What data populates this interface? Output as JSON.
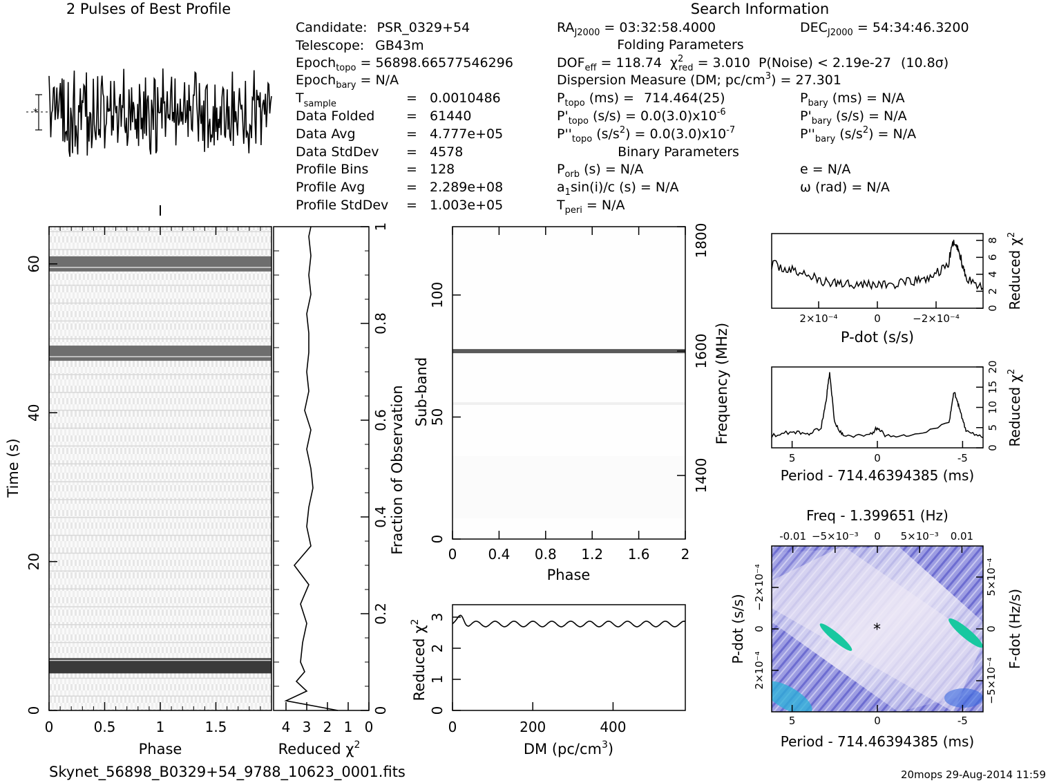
{
  "header": {
    "profile_title": "2 Pulses of Best Profile",
    "search_title": "Search Information",
    "folding_title": "Folding Parameters",
    "binary_title": "Binary Parameters",
    "filename": "Skynet_56898_B0329+54_9788_10623_0001.fits",
    "footer_stamp": "20mops 29-Aug-2014 11:59"
  },
  "info": {
    "candidate_label": "Candidate:",
    "candidate": "PSR_0329+54",
    "telescope_label": "Telescope:",
    "telescope": "GB43m",
    "epoch_topo": "56898.66577546296",
    "epoch_bary": "N/A",
    "t_sample": "0.0010486",
    "data_folded_label": "Data Folded",
    "data_folded": "61440",
    "data_avg_label": "Data Avg",
    "data_avg": "4.777e+05",
    "data_stddev_label": "Data StdDev",
    "data_stddev": "4578",
    "profile_bins_label": "Profile Bins",
    "profile_bins": "128",
    "profile_avg_label": "Profile Avg",
    "profile_avg": "2.289e+08",
    "profile_stddev_label": "Profile StdDev",
    "profile_stddev": "1.003e+05"
  },
  "search": {
    "ra": "03:32:58.4000",
    "dec": "54:34:46.3200",
    "dof_eff": "118.74",
    "chi2_red": "3.010",
    "p_noise": "P(Noise) < 2.19e-27",
    "sigma": "(10.8σ)",
    "dm_label": "Dispersion Measure (DM; pc/cm",
    "dm": "27.301",
    "p_topo": "714.464(25)",
    "pd_topo": "0.0(3.0)x10",
    "pd_topo_exp": "-6",
    "pdd_topo": "0.0(3.0)x10",
    "pdd_topo_exp": "-7",
    "p_bary": "N/A",
    "pd_bary": "N/A",
    "pdd_bary": "N/A",
    "p_orb": "N/A",
    "a1sini": "N/A",
    "t_peri": "N/A",
    "e": "N/A",
    "omega": "N/A"
  },
  "axes": {
    "phase": "Phase",
    "time": "Time (s)",
    "reduced": "Reduced",
    "fraction": "Fraction of Observation",
    "subband": "Sub-band",
    "frequency": "Frequency (MHz)",
    "dm_axis": "DM (pc/cm",
    "pdot": "P-dot (s/s)",
    "period": "Period - 714.46394385 (ms)",
    "freq_top": "Freq - 1.399651 (Hz)",
    "fdot": "F-dot (Hz/s)"
  },
  "chart_data": [
    {
      "type": "line",
      "name": "profile",
      "title": "2 Pulses of Best Profile",
      "x_range": [
        0,
        2
      ],
      "note_shape": "noise-like profile with no clear pulse"
    },
    {
      "type": "heatmap",
      "name": "time-phase",
      "xlabel": "Phase",
      "ylabel": "Time (s)",
      "x_ticks": [
        "0",
        "0.5",
        "1",
        "1.5"
      ],
      "y_ticks": [
        "0",
        "20",
        "40",
        "60"
      ],
      "xlim": [
        0,
        2
      ],
      "ylim": [
        0,
        65
      ],
      "dark_bands_time_s": [
        6,
        48,
        60
      ]
    },
    {
      "type": "line",
      "name": "time-chi2",
      "xlabel": "Reduced χ2",
      "ylabel": "Fraction of Observation",
      "x_ticks": [
        "4",
        "3",
        "2",
        "1",
        "0"
      ],
      "y_ticks": [
        "0",
        "0.2",
        "0.4",
        "0.6",
        "0.8",
        "1"
      ],
      "xlim": [
        4.6,
        0
      ],
      "ylim": [
        0,
        1
      ],
      "fraction": [
        0.0,
        0.02,
        0.04,
        0.06,
        0.08,
        0.1,
        0.14,
        0.18,
        0.22,
        0.26,
        0.3,
        0.34,
        0.38,
        0.42,
        0.46,
        0.5,
        0.54,
        0.58,
        0.62,
        0.66,
        0.7,
        0.74,
        0.78,
        0.82,
        0.86,
        0.9,
        0.94,
        0.98,
        1.0
      ],
      "chi2": [
        1.5,
        4.0,
        3.0,
        3.5,
        3.1,
        3.3,
        3.2,
        3.0,
        3.3,
        2.9,
        3.6,
        2.8,
        3.0,
        2.9,
        2.7,
        2.8,
        3.0,
        2.8,
        3.1,
        2.9,
        3.0,
        2.9,
        2.9,
        3.0,
        2.8,
        2.9,
        2.8,
        2.9,
        2.8
      ]
    },
    {
      "type": "heatmap",
      "name": "subband-phase",
      "xlabel": "Phase",
      "ylabel": "Sub-band",
      "y2label": "Frequency (MHz)",
      "x_ticks": [
        "0",
        "0.4",
        "0.8",
        "1.2",
        "1.6",
        "2"
      ],
      "y_ticks": [
        "0",
        "50",
        "100"
      ],
      "y2_ticks": [
        "1400",
        "1600",
        "1800"
      ],
      "xlim": [
        0,
        2
      ],
      "ylim": [
        0,
        128
      ],
      "dark_band_subband": 77
    },
    {
      "type": "line",
      "name": "dm-chi2",
      "xlabel": "DM (pc/cm3)",
      "ylabel": "Reduced χ2",
      "x_ticks": [
        "0",
        "200",
        "400"
      ],
      "y_ticks": [
        "0",
        "1",
        "2",
        "3"
      ],
      "xlim": [
        0,
        580
      ],
      "ylim": [
        0,
        3.4
      ],
      "note_shape": "flat near 2.8 with small oscillations"
    },
    {
      "type": "line",
      "name": "pdot-chi2",
      "xlabel": "P-dot (s/s)",
      "ylabel": "Reduced χ2",
      "x_ticks": [
        "2×10⁻⁴",
        "0",
        "−2×10⁻⁴"
      ],
      "y_ticks": [
        "0",
        "2",
        "4",
        "6",
        "8"
      ],
      "xlim": [
        0.00036,
        -0.00036
      ],
      "ylim": [
        0,
        8.8
      ],
      "x": [
        0.00036,
        0.0003,
        0.00024,
        0.00018,
        0.00012,
        6e-05,
        0,
        -6e-05,
        -0.00012,
        -0.00018,
        -0.00024,
        -0.00026,
        -0.00028,
        -0.0003,
        -0.00036
      ],
      "y": [
        5.2,
        4.5,
        4.0,
        3.0,
        3.0,
        2.9,
        2.8,
        2.8,
        3.1,
        3.6,
        5.0,
        8.0,
        6.5,
        3.8,
        2.4
      ]
    },
    {
      "type": "line",
      "name": "period-chi2",
      "xlabel": "Period - 714.46394385 (ms)",
      "ylabel": "Reduced χ2",
      "x_ticks": [
        "5",
        "0",
        "-5"
      ],
      "y_ticks": [
        "0",
        "5",
        "10",
        "15",
        "20"
      ],
      "xlim": [
        6.2,
        -6.2
      ],
      "ylim": [
        0,
        20
      ],
      "x": [
        6.2,
        5.0,
        4.0,
        3.3,
        3.0,
        2.8,
        2.5,
        2.0,
        0.5,
        0,
        -0.5,
        -2.0,
        -4.2,
        -4.5,
        -4.8,
        -5.2,
        -6.2
      ],
      "y": [
        3.0,
        4.0,
        3.5,
        5.0,
        12.0,
        18.6,
        6.0,
        3.0,
        3.0,
        5.0,
        3.0,
        3.0,
        6.0,
        14.0,
        10.0,
        4.0,
        2.5
      ]
    },
    {
      "type": "heatmap",
      "name": "pdot-period",
      "xlabel": "Period - 714.46394385 (ms)",
      "ylabel": "P-dot (s/s)",
      "x2label": "Freq - 1.399651 (Hz)",
      "y2label": "F-dot (Hz/s)",
      "x_ticks": [
        "5",
        "0",
        "-5"
      ],
      "x2_ticks": [
        "-0.01",
        "−5×10⁻³",
        "0",
        "5×10⁻³",
        "0.01"
      ],
      "y_ticks": [
        "2×10⁻⁴",
        "0",
        "−2×10⁻⁴"
      ],
      "y2_ticks": [
        "−5×10⁻⁴",
        "0",
        "5×10⁻⁴"
      ]
    }
  ]
}
